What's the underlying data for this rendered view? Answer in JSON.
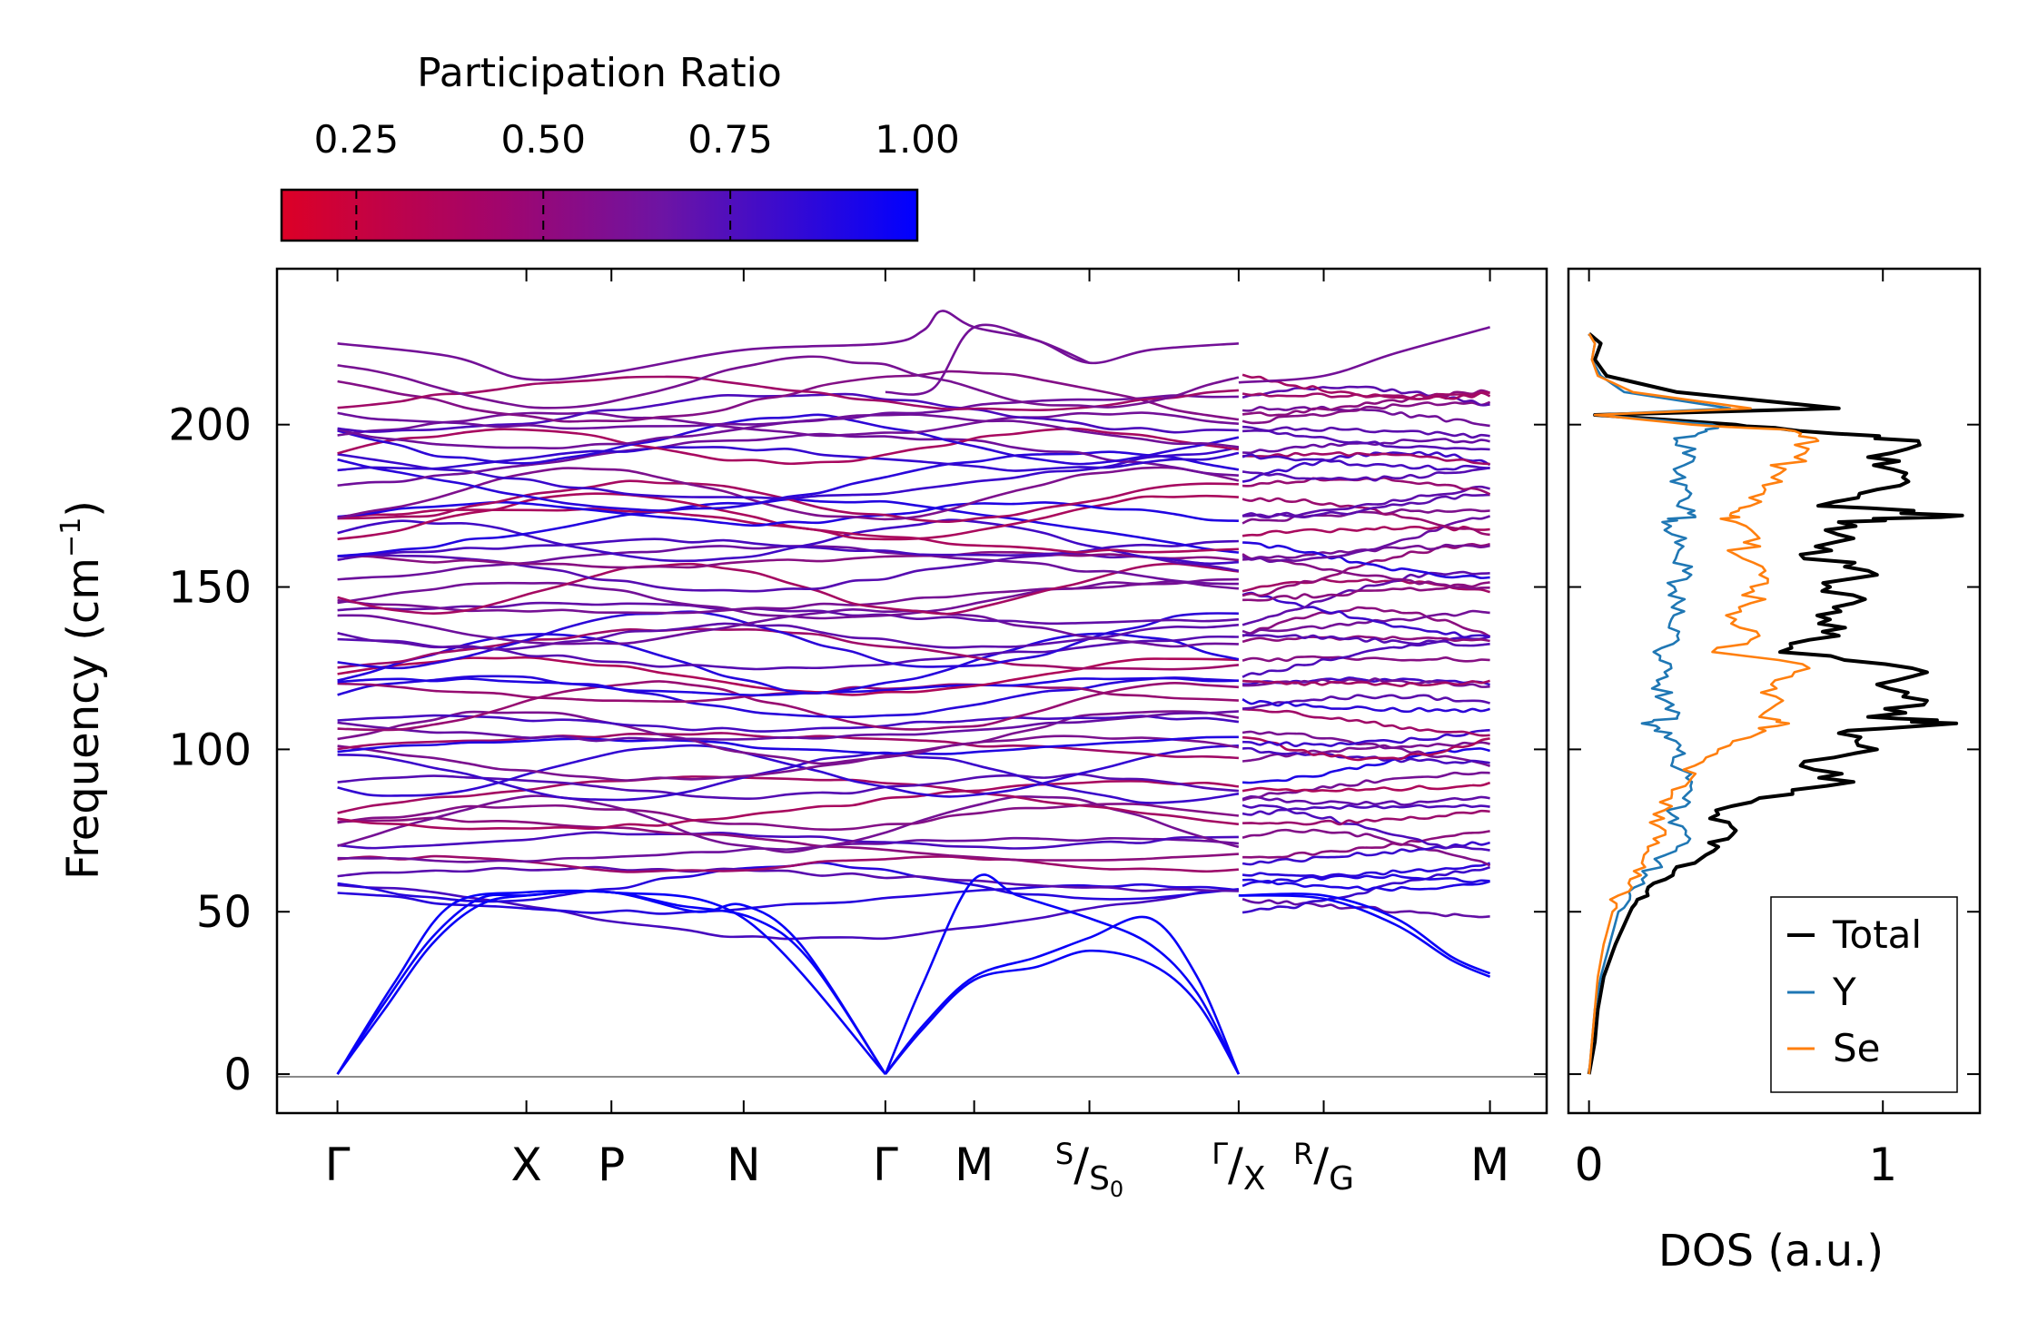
{
  "colors": {
    "low": "#dc0026",
    "mid": "#7a1190",
    "high": "#0000ff",
    "total": "#000000",
    "Y": "#1f77b4",
    "Se": "#ff7f0e",
    "zero_line": "#8a8a8a"
  },
  "colorbar": {
    "title": "Participation Ratio",
    "ticks": [
      "0.25",
      "0.50",
      "0.75",
      "1.00"
    ],
    "tick_values": [
      0.25,
      0.5,
      0.75,
      1.0
    ],
    "range": [
      0.15,
      1.0
    ]
  },
  "chart_data": [
    {
      "type": "line",
      "name": "phonon-dispersion",
      "ylabel_main": "Frequency (cm",
      "ylabel_sup": "−1",
      "ylabel_end": ")",
      "ylim": [
        -12,
        248
      ],
      "yticks": [
        "0",
        "50",
        "100",
        "150",
        "200"
      ],
      "ytick_values": [
        0,
        50,
        100,
        150,
        200
      ],
      "kpoints": [
        {
          "label": "Γ",
          "x": 0.0
        },
        {
          "label": "X",
          "x": 1.0
        },
        {
          "label": "P",
          "x": 1.45
        },
        {
          "label": "N",
          "x": 2.15
        },
        {
          "label": "Γ",
          "x": 2.9
        },
        {
          "label": "M",
          "x": 3.37
        },
        {
          "label": "S",
          "sub": "S",
          "subsub": "0",
          "x": 3.98
        },
        {
          "label": "Γ",
          "sub": "X",
          "x": 4.77
        },
        {
          "label": "R",
          "sub": "G",
          "x": 5.22
        },
        {
          "label": "M",
          "x": 6.1
        }
      ],
      "xlim": [
        -0.32,
        6.4
      ],
      "segment_break": 4.77,
      "acoustic_branches": [
        {
          "x": [
            0,
            0.25,
            0.5,
            0.75,
            1.0,
            1.45,
            2.15,
            2.9
          ],
          "y": [
            0,
            22,
            42,
            54,
            55,
            56,
            48,
            0
          ]
        },
        {
          "x": [
            0,
            0.25,
            0.5,
            0.75,
            1.0,
            1.45,
            1.9,
            2.15,
            2.45,
            2.9
          ],
          "y": [
            0,
            20,
            40,
            52,
            55,
            56,
            50,
            52,
            40,
            0
          ]
        },
        {
          "x": [
            0,
            0.3,
            0.6,
            1.0,
            1.45,
            1.8,
            2.2,
            2.5,
            2.9
          ],
          "y": [
            0,
            28,
            52,
            56,
            56,
            52,
            48,
            35,
            0
          ]
        },
        {
          "x": [
            2.9,
            3.1,
            3.37,
            3.6,
            3.98,
            4.3,
            4.55,
            4.77
          ],
          "y": [
            0,
            28,
            60,
            55,
            48,
            40,
            25,
            0
          ]
        },
        {
          "x": [
            2.9,
            3.1,
            3.37,
            3.7,
            3.98,
            4.3,
            4.55,
            4.77
          ],
          "y": [
            0,
            15,
            30,
            36,
            42,
            48,
            30,
            0
          ]
        },
        {
          "x": [
            2.9,
            3.1,
            3.37,
            3.7,
            3.98,
            4.3,
            4.55,
            4.77
          ],
          "y": [
            0,
            14,
            29,
            33,
            38,
            34,
            22,
            0
          ]
        },
        {
          "x": [
            4.77,
            5.22,
            5.6,
            5.9,
            6.1
          ],
          "y": [
            55,
            55,
            48,
            36,
            31
          ]
        },
        {
          "x": [
            4.77,
            5.22,
            5.6,
            5.9,
            6.1
          ],
          "y": [
            55,
            54,
            46,
            35,
            30
          ]
        }
      ],
      "top_branch": {
        "x": [
          0,
          0.6,
          1.0,
          1.45,
          2.15,
          2.9,
          3.1,
          3.2,
          3.37,
          3.7,
          3.98,
          4.3,
          4.77
        ],
        "y": [
          225,
          221,
          214,
          216,
          223,
          225,
          229,
          235,
          230,
          226,
          219,
          223,
          225
        ]
      },
      "top_branch_2": {
        "x": [
          2.9,
          3.15,
          3.37,
          3.7,
          3.98
        ],
        "y": [
          210,
          211,
          230,
          226,
          219
        ]
      },
      "top_branch_right": {
        "x": [
          4.77,
          5.22,
          5.6,
          6.1
        ],
        "y": [
          213,
          215,
          222,
          230
        ]
      },
      "optical_band_count": 60,
      "optical_range": [
        52,
        213
      ]
    },
    {
      "type": "line",
      "name": "density-of-states",
      "xlabel": "DOS (a.u.)",
      "xticks": [
        "0",
        "1"
      ],
      "xtick_values": [
        0,
        1
      ],
      "xlim": [
        -0.07,
        1.33
      ],
      "series": [
        {
          "name": "Total",
          "color_key": "total",
          "freq": [
            0,
            10,
            20,
            30,
            40,
            50,
            55,
            60,
            65,
            70,
            75,
            80,
            85,
            90,
            95,
            100,
            105,
            108,
            110,
            115,
            120,
            125,
            130,
            135,
            140,
            145,
            150,
            155,
            160,
            165,
            170,
            172,
            175,
            180,
            185,
            190,
            195,
            198,
            200,
            203,
            205,
            210,
            215,
            220,
            225,
            228
          ],
          "dos": [
            0,
            0.02,
            0.03,
            0.05,
            0.09,
            0.14,
            0.2,
            0.26,
            0.36,
            0.44,
            0.5,
            0.44,
            0.58,
            0.9,
            0.72,
            0.98,
            0.85,
            1.25,
            0.95,
            1.15,
            0.98,
            1.1,
            0.65,
            0.85,
            0.82,
            0.9,
            0.82,
            0.95,
            0.72,
            0.9,
            0.85,
            1.27,
            0.78,
            0.98,
            1.08,
            0.95,
            1.12,
            0.72,
            0.5,
            0.02,
            0.85,
            0.3,
            0.06,
            0.02,
            0.04,
            0
          ]
        },
        {
          "name": "Y",
          "color_key": "Y",
          "freq": [
            0,
            10,
            20,
            30,
            40,
            50,
            55,
            60,
            65,
            70,
            75,
            80,
            85,
            90,
            95,
            100,
            105,
            108,
            110,
            115,
            120,
            125,
            130,
            135,
            140,
            145,
            150,
            155,
            160,
            165,
            170,
            172,
            175,
            180,
            185,
            190,
            195,
            198,
            200,
            203,
            205,
            210,
            215,
            220,
            225,
            228
          ],
          "dos": [
            0,
            0.01,
            0.02,
            0.04,
            0.07,
            0.1,
            0.14,
            0.18,
            0.24,
            0.3,
            0.33,
            0.28,
            0.32,
            0.35,
            0.28,
            0.3,
            0.28,
            0.18,
            0.3,
            0.26,
            0.24,
            0.28,
            0.22,
            0.3,
            0.28,
            0.3,
            0.29,
            0.32,
            0.3,
            0.33,
            0.25,
            0.36,
            0.3,
            0.33,
            0.3,
            0.36,
            0.3,
            0.4,
            0.42,
            0.02,
            0.48,
            0.12,
            0.04,
            0.01,
            0.02,
            0
          ]
        },
        {
          "name": "Se",
          "color_key": "Se",
          "freq": [
            0,
            10,
            20,
            30,
            40,
            50,
            55,
            60,
            65,
            70,
            75,
            80,
            85,
            90,
            95,
            100,
            105,
            108,
            110,
            115,
            120,
            125,
            130,
            135,
            140,
            145,
            150,
            155,
            160,
            165,
            170,
            172,
            175,
            180,
            185,
            190,
            195,
            198,
            200,
            203,
            205,
            210,
            215,
            220,
            225,
            228
          ],
          "dos": [
            0,
            0.01,
            0.02,
            0.03,
            0.05,
            0.08,
            0.1,
            0.14,
            0.18,
            0.2,
            0.26,
            0.22,
            0.28,
            0.34,
            0.36,
            0.44,
            0.58,
            0.68,
            0.58,
            0.66,
            0.62,
            0.75,
            0.42,
            0.58,
            0.5,
            0.55,
            0.55,
            0.6,
            0.5,
            0.58,
            0.5,
            0.48,
            0.55,
            0.6,
            0.65,
            0.7,
            0.78,
            0.7,
            0.35,
            0.02,
            0.55,
            0.15,
            0.03,
            0.01,
            0.02,
            0
          ]
        }
      ],
      "legend": {
        "placement": "lower-right",
        "entries": [
          "Total",
          "Y",
          "Se"
        ]
      }
    }
  ]
}
